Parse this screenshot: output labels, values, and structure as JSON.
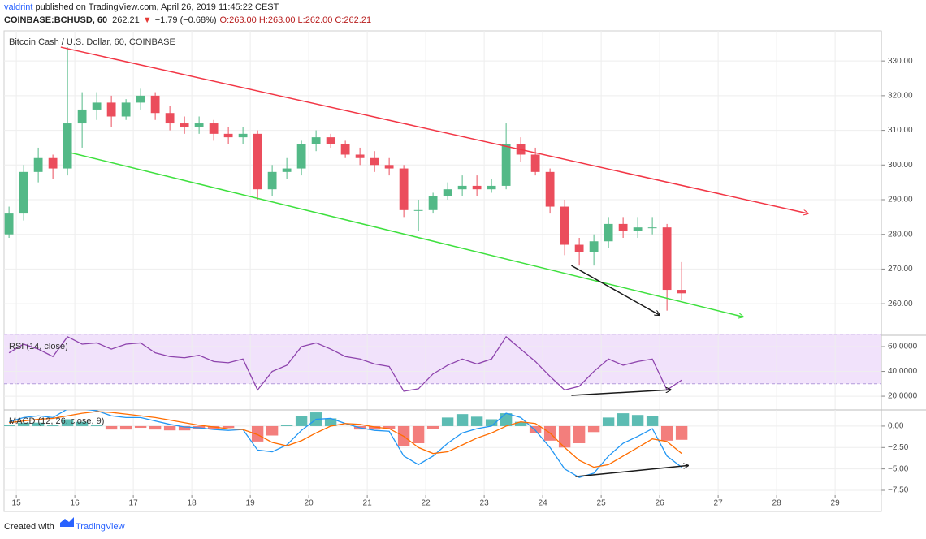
{
  "header": {
    "author": "valdrint",
    "published": " published on TradingView.com, April 26, 2019 11:45:22 CEST",
    "symbol": "COINBASE:BCHUSD, 60",
    "last": "262.21",
    "arrow": "▼",
    "change": "−1.79 (−0.68%)",
    "ohlc": "O:263.00 H:263.00 L:262.00 C:262.21"
  },
  "footer": {
    "created": "Created with",
    "brand": "TradingView"
  },
  "chart_data": [
    {
      "type": "candlestick",
      "title": "Bitcoin Cash / U.S. Dollar, 60, COINBASE",
      "up_color": "#53b987",
      "down_color": "#eb4d5c",
      "x": [
        14.875,
        15.125,
        15.375,
        15.625,
        15.875,
        16.125,
        16.375,
        16.625,
        16.875,
        17.125,
        17.375,
        17.625,
        17.875,
        18.125,
        18.375,
        18.625,
        18.875,
        19.125,
        19.375,
        19.625,
        19.875,
        20.125,
        20.375,
        20.625,
        20.875,
        21.125,
        21.375,
        21.625,
        21.875,
        22.125,
        22.375,
        22.625,
        22.875,
        23.125,
        23.375,
        23.625,
        23.875,
        24.125,
        24.375,
        24.625,
        24.875,
        25.125,
        25.375,
        25.625,
        25.875,
        26.125,
        26.375
      ],
      "open": [
        280,
        286,
        298,
        302,
        299,
        312,
        316,
        318,
        314,
        318,
        320,
        315,
        312,
        311,
        312,
        309,
        308,
        309,
        293,
        298,
        299,
        306,
        308,
        306,
        303,
        302,
        300,
        299,
        287,
        287,
        291,
        293,
        294,
        293,
        294,
        306,
        303,
        298,
        288,
        277,
        275,
        278,
        283,
        281,
        282,
        282,
        264
      ],
      "high": [
        288,
        300,
        305,
        303,
        334,
        321,
        321,
        320,
        319,
        322,
        321,
        317,
        314,
        314,
        313,
        311,
        311,
        310,
        300,
        302,
        307,
        310,
        309,
        307,
        305,
        304,
        302,
        300,
        290,
        292,
        295,
        297,
        297,
        296,
        312,
        308,
        305,
        299,
        290,
        279,
        280,
        285,
        285,
        285,
        285,
        283,
        272
      ],
      "low": [
        279,
        284,
        295,
        296,
        297,
        305,
        313,
        311,
        313,
        316,
        313,
        310,
        309,
        309,
        307,
        306,
        306,
        290,
        291,
        296,
        297,
        304,
        305,
        302,
        300,
        298,
        297,
        285,
        281,
        286,
        290,
        291,
        291,
        292,
        293,
        301,
        297,
        286,
        274,
        271,
        271,
        276,
        279,
        279,
        280,
        258,
        261
      ],
      "close": [
        286,
        298,
        302,
        299,
        312,
        316,
        318,
        314,
        318,
        320,
        315,
        312,
        311,
        312,
        309,
        308,
        309,
        293,
        298,
        299,
        306,
        308,
        306,
        303,
        302,
        300,
        299,
        287,
        287,
        291,
        293,
        294,
        293,
        294,
        306,
        303,
        298,
        288,
        277,
        275,
        278,
        283,
        281,
        282,
        282,
        264,
        263
      ],
      "xlim": [
        14.79,
        29.79
      ],
      "ylim": [
        250.9,
        338.7
      ],
      "yticks": [
        {
          "value": 260,
          "label": "260.00"
        },
        {
          "value": 270,
          "label": "270.00"
        },
        {
          "value": 280,
          "label": "280.00"
        },
        {
          "value": 290,
          "label": "290.00"
        },
        {
          "value": 300,
          "label": "300.00"
        },
        {
          "value": 310,
          "label": "310.00"
        },
        {
          "value": 320,
          "label": "320.00"
        },
        {
          "value": 330,
          "label": "330.00"
        }
      ],
      "grid": true,
      "drawings": [
        {
          "color": "#f23645",
          "x": [
            15.76,
            28.54
          ],
          "y": [
            334,
            286
          ],
          "arrow": true
        },
        {
          "color": "#3ee03e",
          "x": [
            15.94,
            27.43
          ],
          "y": [
            303.5,
            256.2
          ],
          "arrow": true
        },
        {
          "color": "#1a1a1a",
          "x": [
            24.49,
            26.0
          ],
          "y": [
            271,
            256.7
          ],
          "arrow": true
        }
      ]
    },
    {
      "type": "line",
      "title": "RSI (14, close)",
      "band": [
        30,
        70
      ],
      "band_color": "#f1e2fb",
      "x": [
        14.875,
        15.125,
        15.375,
        15.625,
        15.875,
        16.125,
        16.375,
        16.625,
        16.875,
        17.125,
        17.375,
        17.625,
        17.875,
        18.125,
        18.375,
        18.625,
        18.875,
        19.125,
        19.375,
        19.625,
        19.875,
        20.125,
        20.375,
        20.625,
        20.875,
        21.125,
        21.375,
        21.625,
        21.875,
        22.125,
        22.375,
        22.625,
        22.875,
        23.125,
        23.375,
        23.625,
        23.875,
        24.125,
        24.375,
        24.625,
        24.875,
        25.125,
        25.375,
        25.625,
        25.875,
        26.125,
        26.375
      ],
      "series": [
        {
          "name": "RSI",
          "color": "#8e44ad",
          "values": [
            55,
            62,
            58,
            52,
            68,
            62,
            63,
            58,
            62,
            63,
            55,
            52,
            51,
            53,
            48,
            47,
            50,
            25,
            40,
            45,
            60,
            63,
            58,
            52,
            50,
            46,
            44,
            24,
            26,
            38,
            45,
            50,
            46,
            50,
            68,
            58,
            48,
            36,
            25,
            28,
            40,
            50,
            45,
            48,
            50,
            25,
            33
          ]
        }
      ],
      "xlim": [
        14.79,
        29.79
      ],
      "ylim": [
        8.9,
        69.2
      ],
      "yticks": [
        {
          "value": 20,
          "label": "20.0000"
        },
        {
          "value": 40,
          "label": "40.0000"
        },
        {
          "value": 60,
          "label": "60.0000"
        }
      ],
      "grid": true,
      "drawings": [
        {
          "color": "#1a1a1a",
          "x": [
            24.49,
            26.19
          ],
          "y": [
            20.7,
            25.2
          ],
          "arrow": true
        }
      ]
    },
    {
      "type": "line",
      "title": "MACD (12, 26, close, 9)",
      "x": [
        14.875,
        15.125,
        15.375,
        15.625,
        15.875,
        16.125,
        16.375,
        16.625,
        16.875,
        17.125,
        17.375,
        17.625,
        17.875,
        18.125,
        18.375,
        18.625,
        18.875,
        19.125,
        19.375,
        19.625,
        19.875,
        20.125,
        20.375,
        20.625,
        20.875,
        21.125,
        21.375,
        21.625,
        21.875,
        22.125,
        22.375,
        22.625,
        22.875,
        23.125,
        23.375,
        23.625,
        23.875,
        24.125,
        24.375,
        24.625,
        24.875,
        25.125,
        25.375,
        25.625,
        25.875,
        26.125,
        26.375
      ],
      "series": [
        {
          "name": "Histogram",
          "kind": "bar",
          "color": "#26a69a",
          "negative_color": "#ef5350",
          "values": [
            0.1,
            0.4,
            0.4,
            0.1,
            0.8,
            0.5,
            0.1,
            -0.4,
            -0.4,
            -0.2,
            -0.4,
            -0.5,
            -0.5,
            -0.3,
            -0.3,
            -0.2,
            0.0,
            -1.8,
            -1.1,
            0.1,
            1.2,
            1.6,
            0.9,
            0.0,
            -0.4,
            -0.4,
            -0.3,
            -2.3,
            -2.0,
            -0.3,
            1.0,
            1.4,
            1.1,
            0.8,
            1.5,
            0.5,
            -0.8,
            -1.7,
            -2.5,
            -2.0,
            -0.7,
            1.0,
            1.5,
            1.3,
            1.2,
            -1.7,
            -1.6
          ]
        },
        {
          "name": "MACD",
          "color": "#2196f3",
          "values": [
            0.5,
            1.0,
            1.2,
            1.0,
            2.0,
            2.0,
            1.8,
            1.2,
            1.0,
            1.0,
            0.6,
            0.2,
            -0.1,
            -0.2,
            -0.4,
            -0.5,
            -0.4,
            -2.8,
            -3.0,
            -2.2,
            -0.5,
            0.8,
            0.9,
            0.3,
            -0.2,
            -0.5,
            -0.6,
            -3.5,
            -4.5,
            -3.5,
            -2.0,
            -0.8,
            -0.3,
            0.0,
            1.5,
            1.0,
            -0.5,
            -2.5,
            -5.0,
            -6.0,
            -5.5,
            -3.5,
            -2.0,
            -1.2,
            -0.3,
            -3.5,
            -4.8
          ]
        },
        {
          "name": "Signal",
          "color": "#ff6d00",
          "values": [
            0.4,
            0.6,
            0.8,
            0.9,
            1.2,
            1.5,
            1.7,
            1.6,
            1.4,
            1.2,
            1.0,
            0.7,
            0.4,
            0.1,
            -0.1,
            -0.3,
            -0.4,
            -1.0,
            -1.9,
            -2.3,
            -1.7,
            -0.8,
            0.0,
            0.3,
            0.2,
            -0.1,
            -0.3,
            -1.2,
            -2.5,
            -3.2,
            -3.0,
            -2.2,
            -1.4,
            -0.8,
            0.0,
            0.5,
            0.3,
            -0.8,
            -2.5,
            -4.0,
            -4.8,
            -4.5,
            -3.5,
            -2.5,
            -1.5,
            -1.8,
            -3.2
          ]
        }
      ],
      "xlim": [
        14.79,
        29.79
      ],
      "ylim": [
        -8.07,
        1.89
      ],
      "yticks": [
        {
          "value": 0,
          "label": "0.00"
        },
        {
          "value": -2.5,
          "label": "−2.50"
        },
        {
          "value": -5,
          "label": "−5.00"
        },
        {
          "value": -7.5,
          "label": "−7.50"
        }
      ],
      "xticks": [
        15,
        16,
        17,
        18,
        19,
        20,
        21,
        22,
        23,
        24,
        25,
        26,
        27,
        28,
        29
      ],
      "grid": true,
      "drawings": [
        {
          "color": "#1a1a1a",
          "x": [
            24.56,
            26.49
          ],
          "y": [
            -5.9,
            -4.6
          ],
          "arrow": true
        }
      ]
    }
  ]
}
